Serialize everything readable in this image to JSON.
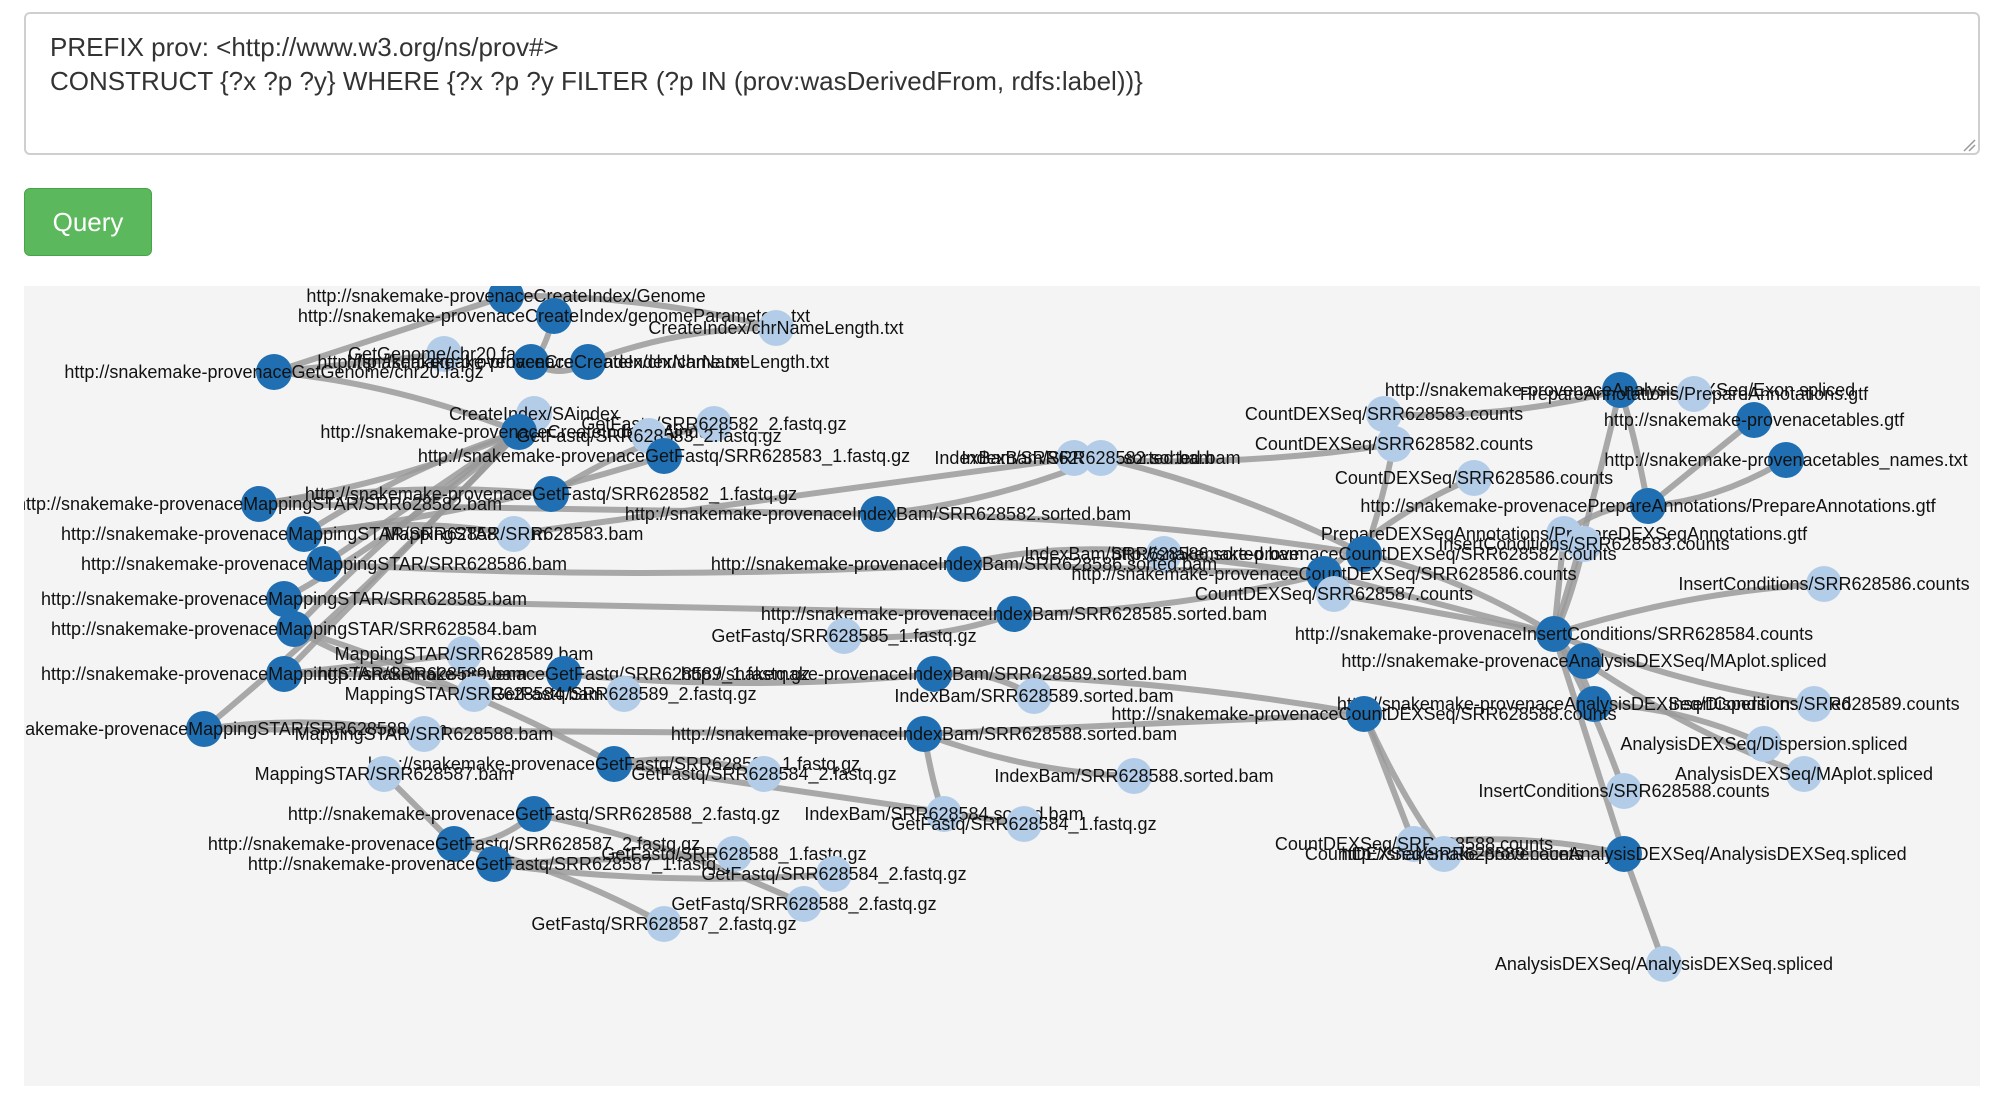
{
  "query": {
    "text": "PREFIX prov: <http://www.w3.org/ns/prov#>\nCONSTRUCT {?x ?p ?y} WHERE {?x ?p ?y FILTER (?p IN (prov:wasDerivedFrom, rdfs:label))}",
    "button_label": "Query"
  },
  "graph": {
    "colors": {
      "background": "#f4f4f4",
      "edge": "#9a9a9a",
      "uri_node": "#1f6fb2",
      "literal_node": "#b3cde8",
      "label": "#111111"
    },
    "nodes": [
      {
        "label": "http://snakemake-provenaceCreateIndex/Genome",
        "kind": "uri"
      },
      {
        "label": "http://snakemake-provenaceCreateIndex/genomeParameters.txt",
        "kind": "uri"
      },
      {
        "label": "CreateIndex/chrNameLength.txt",
        "kind": "literal"
      },
      {
        "label": "GetGenome/chr20.fa.gz",
        "kind": "literal"
      },
      {
        "label": "http://snakemake-provenaceCreateIndex/chrName.txt",
        "kind": "uri"
      },
      {
        "label": "http://snakemake-provenaceCreateIndex/chrNameLength.txt",
        "kind": "uri"
      },
      {
        "label": "http://snakemake-provenaceGetGenome/chr20.fa.gz",
        "kind": "uri"
      },
      {
        "label": "CreateIndex/SAindex",
        "kind": "literal"
      },
      {
        "label": "http://snakemake-provenaceCreateIndex/SAindex",
        "kind": "uri"
      },
      {
        "label": "GetFastq/SRR628582_2.fastq.gz",
        "kind": "literal"
      },
      {
        "label": "GetFastq/SRR628583_2.fastq.gz",
        "kind": "literal"
      },
      {
        "label": "IndexBam/SRR628583.sorted.bam",
        "kind": "literal"
      },
      {
        "label": "http://snakemake-provenaceGetFastq/SRR628583_1.fastq.gz",
        "kind": "uri"
      },
      {
        "label": "IndexBam/SRR628582.sorted.bam",
        "kind": "literal"
      },
      {
        "label": "http://snakemake-provenaceGetFastq/SRR628582_1.fastq.gz",
        "kind": "uri"
      },
      {
        "label": "http://snakemake-provenaceMappingSTAR/SRR628582.bam",
        "kind": "uri"
      },
      {
        "label": "http://snakemake-provenaceIndexBam/SRR628582.sorted.bam",
        "kind": "uri"
      },
      {
        "label": "http://snakemake-provenaceMappingSTAR/SRR628583.bam",
        "kind": "uri"
      },
      {
        "label": "MappingSTAR/SRR628583.bam",
        "kind": "literal"
      },
      {
        "label": "IndexBam/SRR628586.sorted.bam",
        "kind": "literal"
      },
      {
        "label": "http://snakemake-provenaceMappingSTAR/SRR628586.bam",
        "kind": "uri"
      },
      {
        "label": "http://snakemake-provenaceIndexBam/SRR628586.sorted.bam",
        "kind": "uri"
      },
      {
        "label": "http://snakemake-provenaceMappingSTAR/SRR628585.bam",
        "kind": "uri"
      },
      {
        "label": "http://snakemake-provenaceMappingSTAR/SRR628584.bam",
        "kind": "uri"
      },
      {
        "label": "http://snakemake-provenaceIndexBam/SRR628585.sorted.bam",
        "kind": "uri"
      },
      {
        "label": "GetFastq/SRR628585_1.fastq.gz",
        "kind": "literal"
      },
      {
        "label": "MappingSTAR/SRR628589.bam",
        "kind": "literal"
      },
      {
        "label": "http://snakemake-provenaceMappingSTAR/SRR628589.bam",
        "kind": "uri"
      },
      {
        "label": "http://snakemake-provenaceGetFastq/SRR628589_1.fastq.gz",
        "kind": "uri"
      },
      {
        "label": "http://snakemake-provenaceIndexBam/SRR628589.sorted.bam",
        "kind": "uri"
      },
      {
        "label": "http://snakemake-provenaceMappingSTAR/SRR628588.bam",
        "kind": "uri"
      },
      {
        "label": "MappingSTAR/SRR628584.bam",
        "kind": "literal"
      },
      {
        "label": "GetFastq/SRR628589_2.fastq.gz",
        "kind": "literal"
      },
      {
        "label": "IndexBam/SRR628589.sorted.bam",
        "kind": "literal"
      },
      {
        "label": "MappingSTAR/SRR628588.bam",
        "kind": "literal"
      },
      {
        "label": "http://snakemake-provenaceIndexBam/SRR628588.sorted.bam",
        "kind": "uri"
      },
      {
        "label": "http://snakemake-provenaceGetFastq/SRR628584_1.fastq.gz",
        "kind": "uri"
      },
      {
        "label": "MappingSTAR/SRR628587.bam",
        "kind": "literal"
      },
      {
        "label": "GetFastq/SRR628584_2.fastq.gz",
        "kind": "literal"
      },
      {
        "label": "IndexBam/SRR628588.sorted.bam",
        "kind": "literal"
      },
      {
        "label": "http://snakemake-provenaceGetFastq/SRR628588_2.fastq.gz",
        "kind": "uri"
      },
      {
        "label": "IndexBam/SRR628584.sorted.bam",
        "kind": "literal"
      },
      {
        "label": "http://snakemake-provenaceGetFastq/SRR628587_2.fastq.gz",
        "kind": "uri"
      },
      {
        "label": "GetFastq/SRR628584_1.fastq.gz",
        "kind": "literal"
      },
      {
        "label": "http://snakemake-provenaceGetFastq/SRR628587_1.fastq.gz",
        "kind": "uri"
      },
      {
        "label": "GetFastq/SRR628588_1.fastq.gz",
        "kind": "literal"
      },
      {
        "label": "GetFastq/SRR628584_2.fastq.gz",
        "kind": "literal"
      },
      {
        "label": "GetFastq/SRR628588_2.fastq.gz",
        "kind": "literal"
      },
      {
        "label": "GetFastq/SRR628587_2.fastq.gz",
        "kind": "literal"
      },
      {
        "label": "http://snakemake-provenaceAnalysisDEXSeq/Exon.spliced",
        "kind": "uri"
      },
      {
        "label": "PrepareAnnotations/PrepareAnnotations.gtf",
        "kind": "literal"
      },
      {
        "label": "CountDEXSeq/SRR628583.counts",
        "kind": "literal"
      },
      {
        "label": "http://snakemake-provenacetables.gtf",
        "kind": "uri"
      },
      {
        "label": "CountDEXSeq/SRR628582.counts",
        "kind": "literal"
      },
      {
        "label": "http://snakemake-provenacetables_names.txt",
        "kind": "uri"
      },
      {
        "label": "CountDEXSeq/SRR628586.counts",
        "kind": "literal"
      },
      {
        "label": "http://snakemake-provenacePrepareAnnotations/PrepareAnnotations.gtf",
        "kind": "uri"
      },
      {
        "label": "PrepareDEXSeqAnnotations/PrepareDEXSeqAnnotations.gtf",
        "kind": "literal"
      },
      {
        "label": "InsertConditions/SRR628583.counts",
        "kind": "literal"
      },
      {
        "label": "http://snakemake-provenaceCountDEXSeq/SRR628582.counts",
        "kind": "uri"
      },
      {
        "label": "http://snakemake-provenaceCountDEXSeq/SRR628586.counts",
        "kind": "uri"
      },
      {
        "label": "InsertConditions/SRR628586.counts",
        "kind": "literal"
      },
      {
        "label": "CountDEXSeq/SRR628587.counts",
        "kind": "literal"
      },
      {
        "label": "http://snakemake-provenaceInsertConditions/SRR628584.counts",
        "kind": "uri"
      },
      {
        "label": "http://snakemake-provenaceAnalysisDEXSeq/MAplot.spliced",
        "kind": "uri"
      },
      {
        "label": "http://snakemake-provenaceAnalysisDEXSeq/Dispersion.spliced",
        "kind": "uri"
      },
      {
        "label": "InsertConditions/SRR628589.counts",
        "kind": "literal"
      },
      {
        "label": "http://snakemake-provenaceCountDEXSeq/SRR628588.counts",
        "kind": "uri"
      },
      {
        "label": "AnalysisDEXSeq/Dispersion.spliced",
        "kind": "literal"
      },
      {
        "label": "AnalysisDEXSeq/MAplot.spliced",
        "kind": "literal"
      },
      {
        "label": "InsertConditions/SRR628588.counts",
        "kind": "literal"
      },
      {
        "label": "CountDEXSeq/SRR628588.counts",
        "kind": "literal"
      },
      {
        "label": "CountDEXSeq/SRR628589.counts",
        "kind": "literal"
      },
      {
        "label": "http://snakemake-provenaceAnalysisDEXSeq/AnalysisDEXSeq.spliced",
        "kind": "uri"
      },
      {
        "label": "AnalysisDEXSeq/AnalysisDEXSeq.spliced",
        "kind": "literal"
      }
    ],
    "edges": [
      [
        0,
        2
      ],
      [
        0,
        6
      ],
      [
        1,
        4
      ],
      [
        2,
        5
      ],
      [
        3,
        6
      ],
      [
        4,
        5
      ],
      [
        6,
        8
      ],
      [
        7,
        8
      ],
      [
        8,
        15
      ],
      [
        8,
        17
      ],
      [
        8,
        20
      ],
      [
        8,
        22
      ],
      [
        8,
        23
      ],
      [
        8,
        27
      ],
      [
        8,
        30
      ],
      [
        9,
        14
      ],
      [
        10,
        12
      ],
      [
        12,
        17
      ],
      [
        14,
        15
      ],
      [
        15,
        16
      ],
      [
        16,
        13
      ],
      [
        17,
        18
      ],
      [
        18,
        11
      ],
      [
        20,
        21
      ],
      [
        21,
        19
      ],
      [
        22,
        24
      ],
      [
        24,
        25
      ],
      [
        23,
        36
      ],
      [
        27,
        28
      ],
      [
        28,
        29
      ],
      [
        29,
        33
      ],
      [
        30,
        35
      ],
      [
        35,
        39
      ],
      [
        36,
        38
      ],
      [
        36,
        43
      ],
      [
        40,
        42
      ],
      [
        42,
        48
      ],
      [
        44,
        45
      ],
      [
        44,
        46
      ],
      [
        40,
        47
      ],
      [
        26,
        27
      ],
      [
        31,
        23
      ],
      [
        34,
        30
      ],
      [
        37,
        42
      ],
      [
        41,
        35
      ],
      [
        16,
        59
      ],
      [
        21,
        60
      ],
      [
        24,
        60
      ],
      [
        29,
        67
      ],
      [
        35,
        67
      ],
      [
        11,
        53
      ],
      [
        13,
        59
      ],
      [
        19,
        60
      ],
      [
        59,
        53
      ],
      [
        60,
        55
      ],
      [
        67,
        71
      ],
      [
        67,
        72
      ],
      [
        59,
        63
      ],
      [
        60,
        63
      ],
      [
        63,
        64
      ],
      [
        63,
        65
      ],
      [
        63,
        73
      ],
      [
        64,
        69
      ],
      [
        65,
        68
      ],
      [
        49,
        50
      ],
      [
        49,
        51
      ],
      [
        49,
        56
      ],
      [
        52,
        56
      ],
      [
        54,
        56
      ],
      [
        56,
        57
      ],
      [
        57,
        63
      ],
      [
        58,
        63
      ],
      [
        61,
        63
      ],
      [
        62,
        63
      ],
      [
        66,
        63
      ],
      [
        70,
        63
      ],
      [
        73,
        74
      ],
      [
        49,
        63
      ],
      [
        71,
        73
      ],
      [
        72,
        73
      ]
    ]
  }
}
